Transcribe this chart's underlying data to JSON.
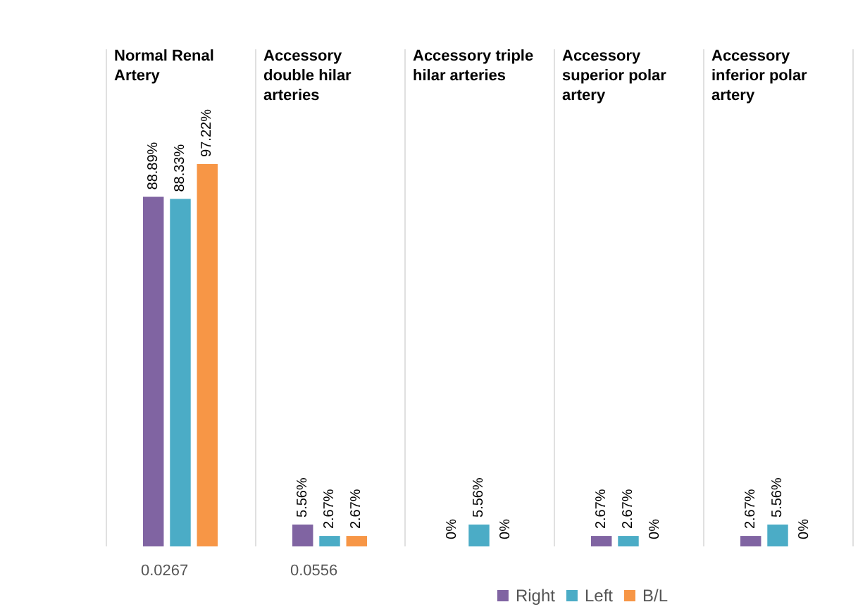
{
  "chart_data": {
    "type": "bar",
    "categories": [
      "Normal Renal Artery",
      "Accessory double hilar arteries",
      "Accessory triple hilar arteries",
      "Accessory superior polar artery",
      "Accessory inferior polar artery"
    ],
    "series": [
      {
        "name": "Right",
        "color": "#8064a2",
        "values": [
          88.89,
          5.56,
          0,
          2.67,
          2.67
        ],
        "value_labels": [
          "88.89%",
          "5.56%",
          "0%",
          "2.67%",
          "2.67%"
        ]
      },
      {
        "name": "Left",
        "color": "#4bacc6",
        "values": [
          88.33,
          2.67,
          5.56,
          2.67,
          5.56
        ],
        "value_labels": [
          "88.33%",
          "2.67%",
          "5.56%",
          "2.67%",
          "5.56%"
        ]
      },
      {
        "name": "B/L",
        "color": "#f79646",
        "values": [
          97.22,
          2.67,
          0,
          0,
          0
        ],
        "value_labels": [
          "97.22%",
          "2.67%",
          "0%",
          "0%",
          "0%"
        ]
      }
    ],
    "annotations": [
      "0.0267",
      "0.0556"
    ],
    "grid": "x",
    "legend": "bottom right"
  }
}
